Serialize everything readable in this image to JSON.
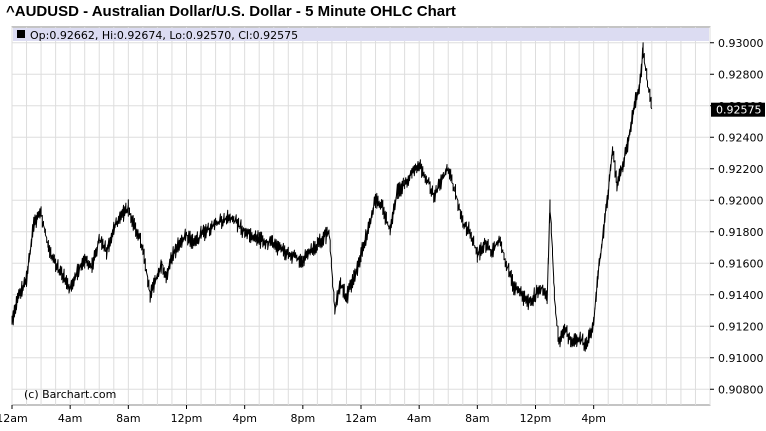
{
  "chart_data": {
    "type": "line",
    "title": "^AUDUSD - Australian Dollar/U.S. Dollar - 5 Minute OHLC Chart",
    "legend": {
      "open_label": "Op:0.92662",
      "high_label": "Hi:0.92674",
      "low_label": "Lo:0.92570",
      "close_label": "Cl:0.92575"
    },
    "credit": "(c) Barchart.com",
    "last_price_label": "0.92575",
    "last_price": 0.92575,
    "ylim": [
      0.907,
      0.931
    ],
    "y_ticks": [
      "0.93000",
      "0.92800",
      "0.92600",
      "0.92400",
      "0.92200",
      "0.92000",
      "0.91800",
      "0.91600",
      "0.91400",
      "0.91200",
      "0.91000",
      "0.90800"
    ],
    "y_tick_values": [
      0.93,
      0.928,
      0.926,
      0.924,
      0.922,
      0.92,
      0.918,
      0.916,
      0.914,
      0.912,
      0.91,
      0.908
    ],
    "x_ticks": [
      "12am",
      "4am",
      "8am",
      "12pm",
      "4pm",
      "8pm",
      "12am",
      "4am",
      "8am",
      "12pm",
      "4pm"
    ],
    "x_tick_hours": [
      0,
      4,
      8,
      12,
      16,
      20,
      24,
      28,
      32,
      36,
      40
    ],
    "xlim_hours": [
      0,
      48
    ],
    "grid": true,
    "series": [
      {
        "x_hours": [
          0,
          0.3,
          0.6,
          1.0,
          1.5,
          2.0,
          2.3,
          2.5,
          3.0,
          3.5,
          4.0,
          4.5,
          5.0,
          5.5,
          6.0,
          6.5,
          7.0,
          7.5,
          8.0,
          8.5,
          9.0,
          9.5,
          10.0,
          10.3,
          10.6,
          11.0,
          11.5,
          12.0,
          12.5,
          13.0,
          14.0,
          15.0,
          16.0,
          17.0,
          18.0,
          19.0,
          20.0,
          21.0,
          21.8,
          22.2,
          22.6,
          23.0,
          23.5,
          24.0,
          24.5,
          25.0,
          25.5,
          26.0,
          26.5,
          27.0,
          27.5,
          28.0,
          28.5,
          29.0,
          29.5,
          30.0,
          30.5,
          31.0,
          31.5,
          32.0,
          32.5,
          33.0,
          33.5,
          34.0,
          34.5,
          35.0,
          35.5,
          36.0,
          36.5,
          36.8,
          37.0,
          37.3,
          37.6,
          38.0,
          38.5,
          39.0,
          39.5,
          40.0,
          40.3,
          40.6,
          41.0,
          41.3,
          41.6,
          42.0,
          42.4,
          42.8,
          43.2,
          43.4,
          43.7,
          44.0
        ],
        "values": [
          0.9123,
          0.9135,
          0.9142,
          0.915,
          0.9185,
          0.9192,
          0.9178,
          0.917,
          0.916,
          0.9152,
          0.9145,
          0.9155,
          0.9162,
          0.9158,
          0.9175,
          0.9168,
          0.9182,
          0.919,
          0.9195,
          0.9182,
          0.917,
          0.914,
          0.9152,
          0.916,
          0.915,
          0.9165,
          0.9172,
          0.9178,
          0.9172,
          0.9178,
          0.9185,
          0.919,
          0.918,
          0.9175,
          0.9172,
          0.9165,
          0.9162,
          0.9172,
          0.918,
          0.913,
          0.9148,
          0.9138,
          0.915,
          0.9165,
          0.9182,
          0.92,
          0.9195,
          0.918,
          0.9205,
          0.921,
          0.9218,
          0.9222,
          0.9215,
          0.9202,
          0.9212,
          0.922,
          0.9205,
          0.9185,
          0.918,
          0.9165,
          0.9172,
          0.9168,
          0.9175,
          0.916,
          0.9145,
          0.914,
          0.9135,
          0.914,
          0.9145,
          0.9138,
          0.9198,
          0.914,
          0.911,
          0.9118,
          0.911,
          0.9112,
          0.9108,
          0.9122,
          0.9155,
          0.9175,
          0.9205,
          0.9232,
          0.921,
          0.9222,
          0.9238,
          0.926,
          0.9275,
          0.9295,
          0.9275,
          0.9258
        ]
      }
    ]
  }
}
